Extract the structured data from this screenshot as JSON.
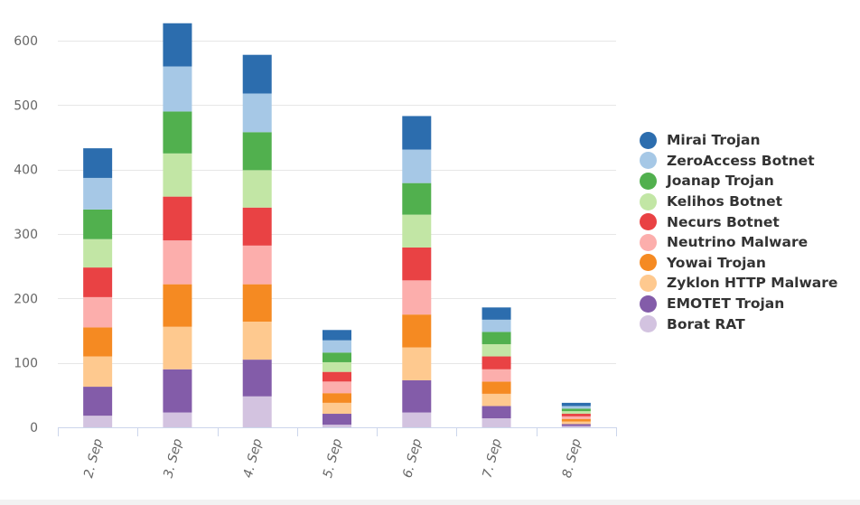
{
  "chart_data": {
    "type": "bar",
    "stacked": true,
    "title": "",
    "xlabel": "",
    "ylabel": "",
    "ylim": [
      0,
      600
    ],
    "yticks": [
      0,
      100,
      200,
      300,
      400,
      500,
      600
    ],
    "grid": true,
    "legend_position": "right",
    "categories": [
      "2. Sep",
      "3. Sep",
      "4. Sep",
      "5. Sep",
      "6. Sep",
      "7. Sep",
      "8. Sep"
    ],
    "series": [
      {
        "name": "Borat RAT",
        "color": "#d3c3e0",
        "values": [
          18,
          23,
          48,
          4,
          23,
          14,
          2
        ]
      },
      {
        "name": "EMOTET Trojan",
        "color": "#835ca9",
        "values": [
          45,
          67,
          57,
          17,
          50,
          19,
          3
        ]
      },
      {
        "name": "Zyklon HTTP Malware",
        "color": "#fec98f",
        "values": [
          47,
          66,
          59,
          17,
          51,
          19,
          4
        ]
      },
      {
        "name": "Yowai Trojan",
        "color": "#f58a22",
        "values": [
          45,
          66,
          58,
          15,
          51,
          19,
          4
        ]
      },
      {
        "name": "Neutrino Malware",
        "color": "#fcaeac",
        "values": [
          47,
          68,
          60,
          18,
          53,
          19,
          4
        ]
      },
      {
        "name": "Necurs Botnet",
        "color": "#e94244",
        "values": [
          46,
          68,
          59,
          15,
          51,
          20,
          4
        ]
      },
      {
        "name": "Kelihos Botnet",
        "color": "#c2e6a5",
        "values": [
          44,
          67,
          58,
          15,
          51,
          19,
          4
        ]
      },
      {
        "name": "Joanap Trojan",
        "color": "#51b04e",
        "values": [
          46,
          65,
          59,
          15,
          49,
          19,
          4
        ]
      },
      {
        "name": "ZeroAccess Botnet",
        "color": "#a6c8e6",
        "values": [
          49,
          70,
          60,
          19,
          52,
          19,
          4
        ]
      },
      {
        "name": "Mirai Trojan",
        "color": "#2c6dae",
        "values": [
          46,
          67,
          60,
          16,
          52,
          19,
          5
        ]
      }
    ]
  },
  "legend_items": [
    {
      "label": "Mirai Trojan",
      "color": "#2c6dae"
    },
    {
      "label": "ZeroAccess Botnet",
      "color": "#a6c8e6"
    },
    {
      "label": "Joanap Trojan",
      "color": "#51b04e"
    },
    {
      "label": "Kelihos Botnet",
      "color": "#c2e6a5"
    },
    {
      "label": "Necurs Botnet",
      "color": "#e94244"
    },
    {
      "label": "Neutrino Malware",
      "color": "#fcaeac"
    },
    {
      "label": "Yowai Trojan",
      "color": "#f58a22"
    },
    {
      "label": "Zyklon HTTP Malware",
      "color": "#fec98f"
    },
    {
      "label": "EMOTET Trojan",
      "color": "#835ca9"
    },
    {
      "label": "Borat RAT",
      "color": "#d3c3e0"
    }
  ]
}
